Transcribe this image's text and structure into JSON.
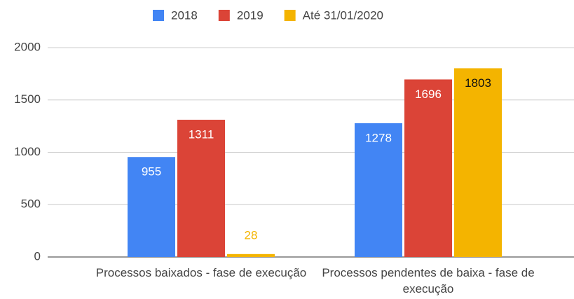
{
  "chart_data": {
    "type": "bar",
    "categories": [
      "Processos baixados - fase de execução",
      "Processos pendentes de baixa - fase de execução"
    ],
    "series": [
      {
        "name": "2018",
        "color": "#4285f4",
        "values": [
          955,
          1278
        ]
      },
      {
        "name": "2019",
        "color": "#db4437",
        "values": [
          1311,
          1696
        ]
      },
      {
        "name": "Até 31/01/2020",
        "color": "#f4b400",
        "values": [
          28,
          1803
        ]
      }
    ],
    "ylim": [
      0,
      2000
    ],
    "yticks": [
      0,
      500,
      1000,
      1500,
      2000
    ],
    "grid": true,
    "legend": "top"
  }
}
